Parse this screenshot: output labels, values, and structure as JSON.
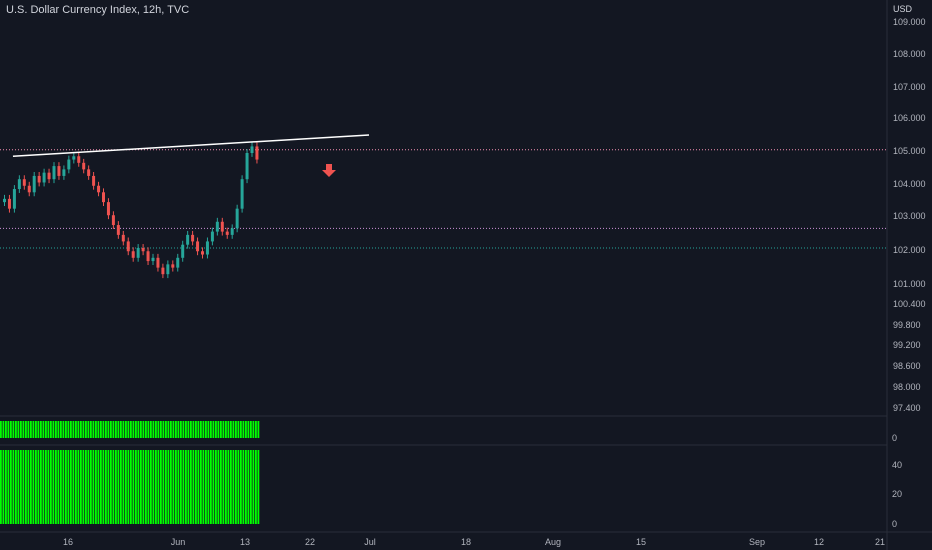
{
  "header": {
    "title": "U.S. Dollar Currency Index, 12h, TVC",
    "unit": "USD"
  },
  "colors": {
    "background": "#131722",
    "up": "#26a69a",
    "down": "#ef5350",
    "histogram": "#00ff00",
    "trendline": "#ffffff",
    "arrow": "#ef5350"
  },
  "icons": {
    "arrow": "down-arrow-icon"
  },
  "chart_data": [
    {
      "type": "candlestick",
      "title": "U.S. Dollar Currency Index, 12h, TVC",
      "y_axis_labels": [
        "109.000",
        "108.000",
        "107.000",
        "106.000",
        "105.000",
        "104.000",
        "103.000",
        "102.000",
        "101.000",
        "100.400",
        "99.800",
        "99.200",
        "98.600",
        "98.000",
        "97.400"
      ],
      "x_axis_labels": [
        "16",
        "Jun",
        "13",
        "22",
        "Jul",
        "18",
        "Aug",
        "15",
        "Sep",
        "12",
        "21"
      ],
      "grid": false,
      "ohlc_close_path": [
        103.6,
        103.3,
        103.9,
        104.2,
        104.0,
        103.8,
        104.3,
        104.1,
        104.4,
        104.2,
        104.6,
        104.3,
        104.5,
        104.8,
        104.9,
        104.7,
        104.5,
        104.3,
        104.0,
        103.8,
        103.5,
        103.1,
        102.8,
        102.5,
        102.3,
        102.0,
        101.8,
        102.1,
        102.0,
        101.7,
        101.8,
        101.5,
        101.3,
        101.6,
        101.5,
        101.8,
        102.2,
        102.5,
        102.3,
        102.0,
        101.9,
        102.3,
        102.6,
        102.9,
        102.6,
        102.5,
        102.7,
        103.3,
        104.2,
        105.0,
        105.2,
        104.8
      ],
      "reference_lines": [
        105.1,
        102.7,
        102.1
      ],
      "trendline": {
        "start": [
          1,
          104.9
        ],
        "end": [
          43,
          105.55
        ]
      }
    },
    {
      "type": "histogram",
      "y_axis_labels": [
        "0"
      ]
    },
    {
      "type": "histogram",
      "y_axis_labels": [
        "40",
        "20",
        "0"
      ]
    }
  ]
}
